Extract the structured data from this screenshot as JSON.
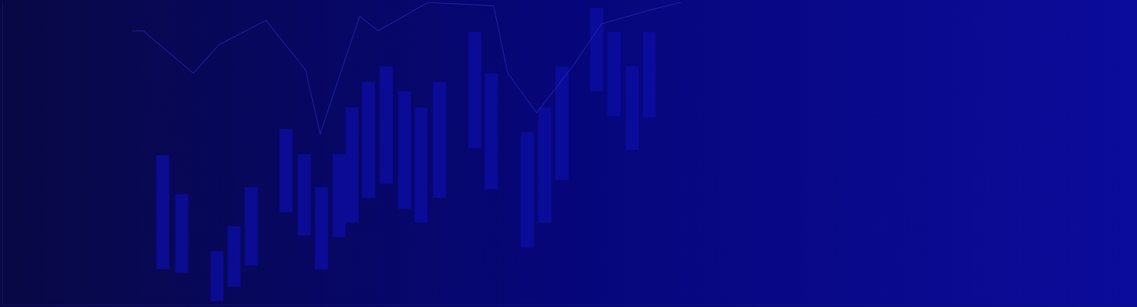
{
  "chart_data": {
    "type": "candlestick",
    "xlim": [
      0,
      1920
    ],
    "ylim": [
      0,
      520
    ],
    "tick_labels": false,
    "grid": false,
    "series": [
      {
        "type": "candlestick",
        "color": "#0e0ea6",
        "x": [
          272,
          304,
          364,
          393,
          422,
          481,
          512,
          541,
          571,
          593,
          621,
          651,
          682,
          710,
          741,
          801,
          829,
          890,
          920,
          949,
          1008,
          1037,
          1068,
          1097
        ],
        "low": [
          61,
          55,
          6,
          31,
          67,
          159,
          119,
          61,
          116,
          141,
          184,
          208,
          165,
          141,
          184,
          269,
          199,
          98,
          141,
          214,
          367,
          324,
          266,
          322
        ],
        "high": [
          257,
          190,
          92,
          135,
          202,
          302,
          259,
          202,
          259,
          339,
          383,
          410,
          367,
          339,
          383,
          469,
          398,
          297,
          339,
          410,
          510,
          469,
          410,
          469
        ]
      },
      {
        "type": "line",
        "color": "#2a2ab8",
        "x": [
          220,
          239,
          324,
          367,
          447,
          514,
          539,
          606,
          637,
          722,
          833,
          857,
          906,
          967,
          1016,
          1102,
          1151
        ],
        "values": [
          471,
          471,
          398,
          447,
          489,
          404,
          294,
          496,
          471,
          520,
          514,
          398,
          330,
          410,
          483,
          508,
          520
        ]
      }
    ]
  }
}
